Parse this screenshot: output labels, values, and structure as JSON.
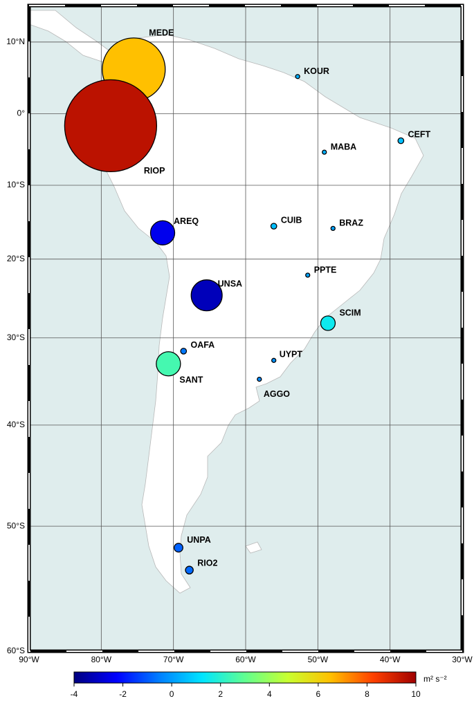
{
  "chart_data": {
    "type": "map",
    "xlim": [
      -90,
      -30
    ],
    "ylim": [
      -60,
      15
    ],
    "xticks": [
      {
        "value": -90,
        "label": "90°W"
      },
      {
        "value": -80,
        "label": "80°W"
      },
      {
        "value": -70,
        "label": "70°W"
      },
      {
        "value": -60,
        "label": "60°W"
      },
      {
        "value": -50,
        "label": "50°W"
      },
      {
        "value": -40,
        "label": "40°W"
      },
      {
        "value": -30,
        "label": "30°W"
      }
    ],
    "yticks": [
      {
        "value": 10,
        "label": "10°N"
      },
      {
        "value": 0,
        "label": "0°"
      },
      {
        "value": -10,
        "label": "10°S"
      },
      {
        "value": -20,
        "label": "20°S"
      },
      {
        "value": -30,
        "label": "30°S"
      },
      {
        "value": -40,
        "label": "40°S"
      },
      {
        "value": -50,
        "label": "50°S"
      },
      {
        "value": -60,
        "label": "60°S"
      }
    ],
    "grid": true,
    "stations": [
      {
        "name": "MEDE",
        "lon": -75.5,
        "lat": 6.2,
        "value": 6.5
      },
      {
        "name": "RIOP",
        "lon": -78.7,
        "lat": -1.7,
        "value": 9.5
      },
      {
        "name": "KOUR",
        "lon": -52.8,
        "lat": 5.2,
        "value": 0.3
      },
      {
        "name": "CEFT",
        "lon": -38.5,
        "lat": -3.8,
        "value": 0.6
      },
      {
        "name": "MABA",
        "lon": -49.1,
        "lat": -5.4,
        "value": 0.3
      },
      {
        "name": "AREQ",
        "lon": -71.5,
        "lat": -16.5,
        "value": -2.5
      },
      {
        "name": "CUIB",
        "lon": -56.1,
        "lat": -15.6,
        "value": 0.6
      },
      {
        "name": "BRAZ",
        "lon": -47.9,
        "lat": -15.9,
        "value": 0.1
      },
      {
        "name": "PPTE",
        "lon": -51.4,
        "lat": -22.1,
        "value": 0.1
      },
      {
        "name": "UNSA",
        "lon": -65.4,
        "lat": -24.7,
        "value": -3.2
      },
      {
        "name": "SCIM",
        "lon": -48.6,
        "lat": -28.2,
        "value": 1.5
      },
      {
        "name": "OAFA",
        "lon": -68.6,
        "lat": -31.6,
        "value": -0.6
      },
      {
        "name": "SANT",
        "lon": -70.7,
        "lat": -33.1,
        "value": 2.5
      },
      {
        "name": "UYPT",
        "lon": -56.1,
        "lat": -32.7,
        "value": -0.2
      },
      {
        "name": "AGGO",
        "lon": -58.1,
        "lat": -34.9,
        "value": -0.3
      },
      {
        "name": "UNPA",
        "lon": -69.3,
        "lat": -51.9,
        "value": -0.9
      },
      {
        "name": "RIO2",
        "lon": -67.8,
        "lat": -53.8,
        "value": -0.8
      }
    ],
    "colorbar": {
      "lim": [
        -4,
        10
      ],
      "ticks": [
        -4,
        -2,
        0,
        2,
        4,
        6,
        8,
        10
      ],
      "label": "m² s⁻²",
      "colors": [
        "#00007f",
        "#0000ff",
        "#007fff",
        "#00e5ff",
        "#60ff90",
        "#c8ff30",
        "#ffc000",
        "#ff4000",
        "#a00000"
      ]
    }
  }
}
